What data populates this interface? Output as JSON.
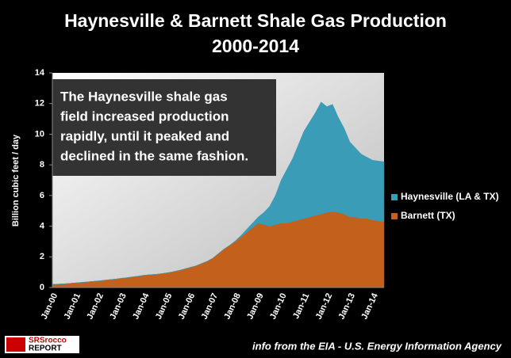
{
  "chart_data": {
    "type": "stacked_area",
    "title": [
      "Haynesville & Barnett Shale Gas Production",
      "2000-2014"
    ],
    "y_label": "Billion cubic feet / day",
    "annotation": [
      "The Haynesville shale gas",
      "field increased production",
      "rapidly, until it peaked and",
      "declined in the same fashion."
    ],
    "source": "info from the EIA - U.S. Energy Information Agency",
    "logo": [
      "SRSrocco",
      "REPORT"
    ],
    "x": [
      "Jan-00",
      null,
      null,
      null,
      "Jan-01",
      null,
      null,
      null,
      "Jan-02",
      null,
      null,
      null,
      "Jan-03",
      null,
      null,
      null,
      "Jan-04",
      null,
      null,
      null,
      "Jan-05",
      null,
      null,
      null,
      "Jan-06",
      null,
      null,
      null,
      "Jan-07",
      null,
      null,
      null,
      "Jan-08",
      null,
      null,
      null,
      "Jan-09",
      null,
      null,
      null,
      "Jan-10",
      null,
      null,
      null,
      "Jan-11",
      null,
      null,
      null,
      "Jan-12",
      null,
      null,
      null,
      "Jan-13",
      null,
      null,
      null,
      "Jan-14",
      null,
      null
    ],
    "series": [
      {
        "name": "Barnett (TX)",
        "color": "#c2601c",
        "values": [
          0.2,
          0.22,
          0.24,
          0.27,
          0.3,
          0.33,
          0.36,
          0.4,
          0.43,
          0.47,
          0.51,
          0.55,
          0.6,
          0.64,
          0.69,
          0.74,
          0.8,
          0.83,
          0.86,
          0.9,
          0.95,
          1.02,
          1.1,
          1.2,
          1.3,
          1.4,
          1.55,
          1.7,
          1.9,
          2.2,
          2.5,
          2.75,
          3.0,
          3.3,
          3.6,
          3.9,
          4.2,
          4.1,
          4.0,
          4.1,
          4.2,
          4.2,
          4.3,
          4.4,
          4.5,
          4.6,
          4.7,
          4.8,
          4.9,
          4.95,
          4.9,
          4.8,
          4.6,
          4.6,
          4.5,
          4.5,
          4.4,
          4.35,
          4.3
        ]
      },
      {
        "name": "Haynesville (LA & TX)",
        "color": "#3a9cb6",
        "values": [
          0,
          0,
          0,
          0,
          0,
          0,
          0,
          0,
          0,
          0,
          0,
          0,
          0,
          0,
          0,
          0,
          0,
          0,
          0,
          0,
          0,
          0,
          0,
          0,
          0,
          0,
          0,
          0,
          0,
          0,
          0,
          0,
          0.05,
          0.1,
          0.2,
          0.3,
          0.4,
          0.8,
          1.3,
          1.9,
          2.8,
          3.5,
          4.1,
          4.9,
          5.7,
          6.2,
          6.7,
          7.3,
          6.9,
          7.0,
          6.2,
          5.6,
          4.9,
          4.5,
          4.2,
          4.0,
          3.9,
          3.9,
          3.9
        ]
      }
    ],
    "ylim": [
      0,
      14
    ],
    "yticks": [
      0,
      2,
      4,
      6,
      8,
      10,
      12,
      14
    ],
    "legend": "right"
  }
}
